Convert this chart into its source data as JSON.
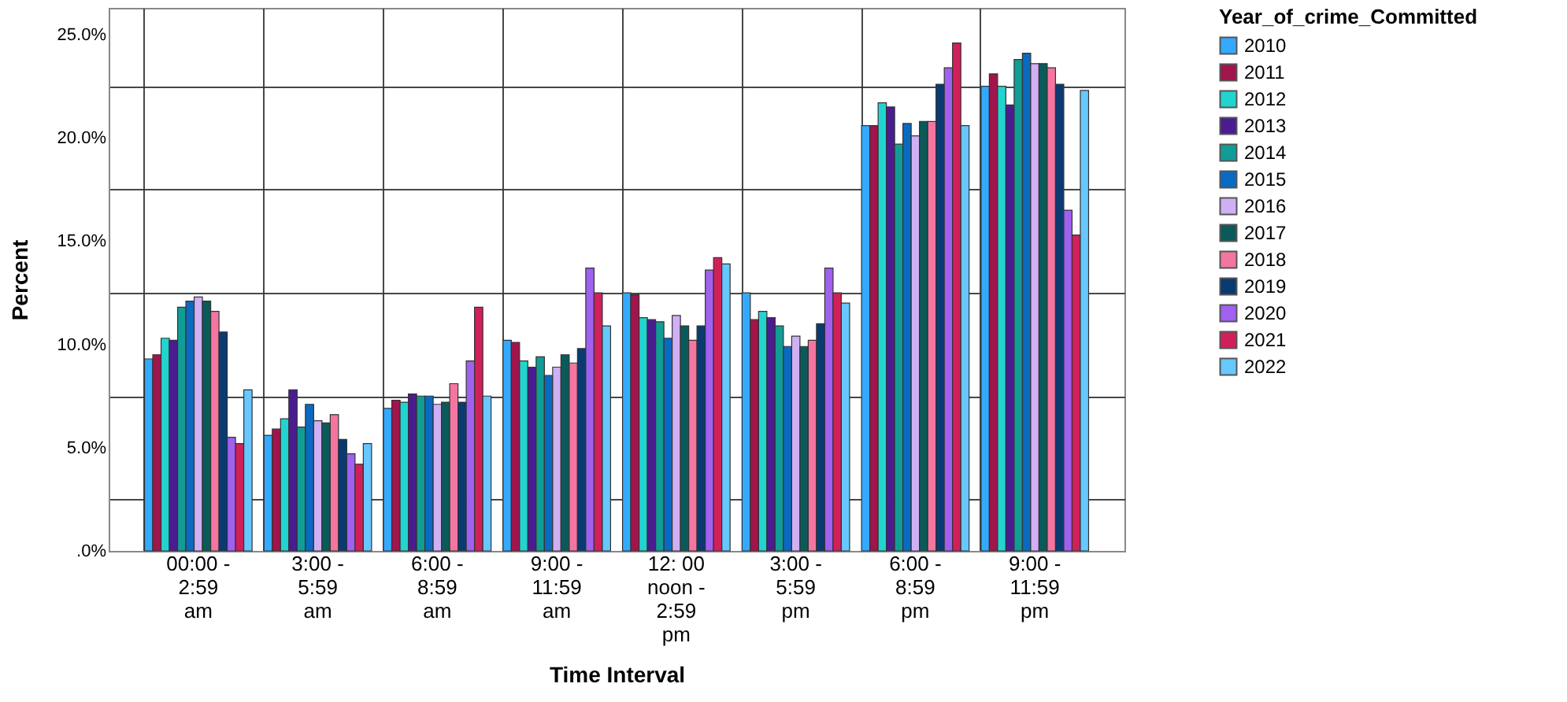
{
  "chart_data": {
    "type": "bar",
    "xlabel": "Time Interval",
    "ylabel": "Percent",
    "legend_title": "Year_of_crime_Committed",
    "categories": [
      "00:00 -\n2:59\nam",
      "3:00 -\n5:59\nam",
      "6:00 -\n8:59\nam",
      "9:00 -\n11:59\nam",
      "12: 00\nnoon -\n2:59\npm",
      "3:00 -\n5:59\npm",
      "6:00 -\n8:59\npm",
      "9:00 -\n11:59\npm"
    ],
    "series": [
      {
        "name": "2010",
        "color": "#33aaff",
        "values": [
          9.3,
          5.6,
          6.9,
          10.2,
          12.5,
          12.5,
          20.6,
          22.5
        ]
      },
      {
        "name": "2011",
        "color": "#a0154b",
        "values": [
          9.5,
          5.9,
          7.3,
          10.1,
          12.4,
          11.2,
          20.6,
          23.1
        ]
      },
      {
        "name": "2012",
        "color": "#22d4d0",
        "values": [
          10.3,
          6.4,
          7.2,
          9.2,
          11.3,
          11.6,
          21.7,
          22.5
        ]
      },
      {
        "name": "2013",
        "color": "#4b1c8f",
        "values": [
          10.2,
          7.8,
          7.6,
          8.9,
          11.2,
          11.3,
          21.5,
          21.6
        ]
      },
      {
        "name": "2014",
        "color": "#119c96",
        "values": [
          11.8,
          6.0,
          7.5,
          9.4,
          11.1,
          10.9,
          19.7,
          23.8
        ]
      },
      {
        "name": "2015",
        "color": "#0a6ac2",
        "values": [
          12.1,
          7.1,
          7.5,
          8.5,
          10.3,
          9.9,
          20.7,
          24.1
        ]
      },
      {
        "name": "2016",
        "color": "#d0b0f5",
        "values": [
          12.3,
          6.3,
          7.1,
          8.9,
          11.4,
          10.4,
          20.1,
          23.6
        ]
      },
      {
        "name": "2017",
        "color": "#0b5a5a",
        "values": [
          12.1,
          6.2,
          7.2,
          9.5,
          10.9,
          9.9,
          20.8,
          23.6
        ]
      },
      {
        "name": "2018",
        "color": "#f476a0",
        "values": [
          11.6,
          6.6,
          8.1,
          9.1,
          10.2,
          10.2,
          20.8,
          23.4
        ]
      },
      {
        "name": "2019",
        "color": "#0a3a70",
        "values": [
          10.6,
          5.4,
          7.2,
          9.8,
          10.9,
          11.0,
          22.6,
          22.6
        ]
      },
      {
        "name": "2020",
        "color": "#a060f0",
        "values": [
          5.5,
          4.7,
          9.2,
          13.7,
          13.6,
          13.7,
          23.4,
          16.5
        ]
      },
      {
        "name": "2021",
        "color": "#d0205a",
        "values": [
          5.2,
          4.2,
          11.8,
          12.5,
          14.2,
          12.5,
          24.6,
          15.3
        ]
      },
      {
        "name": "2022",
        "color": "#66c8ff",
        "values": [
          7.8,
          5.2,
          7.5,
          10.9,
          13.9,
          12.0,
          20.6,
          22.3
        ]
      }
    ],
    "ylim": [
      0,
      26.3
    ],
    "yticks": [
      {
        "value": 0,
        "label": ".0%"
      },
      {
        "value": 2.5,
        "label": null
      },
      {
        "value": 5,
        "label": "5.0%"
      },
      {
        "value": 7.5,
        "label": null
      },
      {
        "value": 10,
        "label": "10.0%"
      },
      {
        "value": 12.5,
        "label": null
      },
      {
        "value": 15,
        "label": "15.0%"
      },
      {
        "value": 17.5,
        "label": null
      },
      {
        "value": 20,
        "label": "20.0%"
      },
      {
        "value": 22.5,
        "label": null
      },
      {
        "value": 25,
        "label": "25.0%"
      }
    ],
    "grid": true,
    "legend": "top right"
  }
}
